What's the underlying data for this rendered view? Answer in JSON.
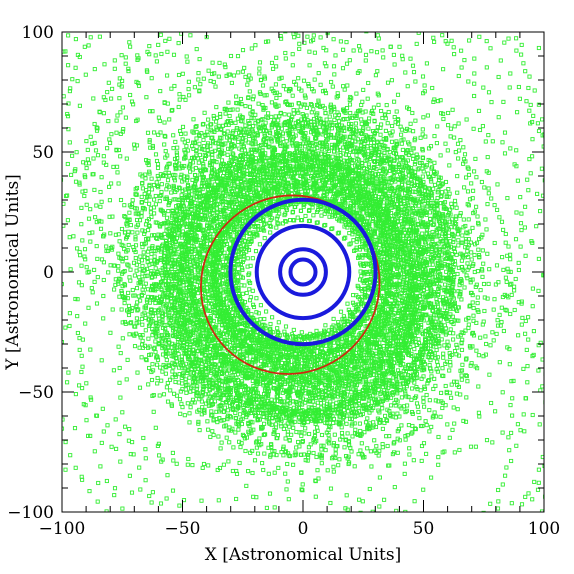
{
  "chart_data": {
    "type": "scatter",
    "title": "",
    "xlabel": "X [Astronomical Units]",
    "ylabel": "Y [Astronomical Units]",
    "xlim": [
      -100,
      100
    ],
    "ylim": [
      -100,
      100
    ],
    "x_ticks": [
      -100,
      -50,
      0,
      50,
      100
    ],
    "y_ticks": [
      -100,
      -50,
      0,
      50,
      100
    ],
    "x_tick_labels": [
      "−100",
      "−50",
      "0",
      "50",
      "100"
    ],
    "y_tick_labels": [
      "−100",
      "−50",
      "0",
      "50",
      "100"
    ],
    "grid": false,
    "legend": "none",
    "colors": {
      "scattered_objects": "#33ee33",
      "planet_orbits": "#1a1adc",
      "highlighted_orbit": "#cc2a10"
    },
    "planet_orbits": [
      {
        "radius": 5.2
      },
      {
        "radius": 9.5
      },
      {
        "radius": 19.2
      },
      {
        "radius": 30.1
      }
    ],
    "highlighted_orbit": {
      "a": 37.5,
      "e": 0.2,
      "omega_deg": 45
    },
    "scattered_population": {
      "marker": "open-square",
      "inner_edge_au": 20,
      "disk_orbits": 150,
      "disk_a_range": [
        28,
        68
      ],
      "disk_e_max": 0.3,
      "outer_orbits": 32,
      "outer_a_range": [
        70,
        130
      ],
      "outer_e_range": [
        0.2,
        0.7
      ]
    }
  }
}
